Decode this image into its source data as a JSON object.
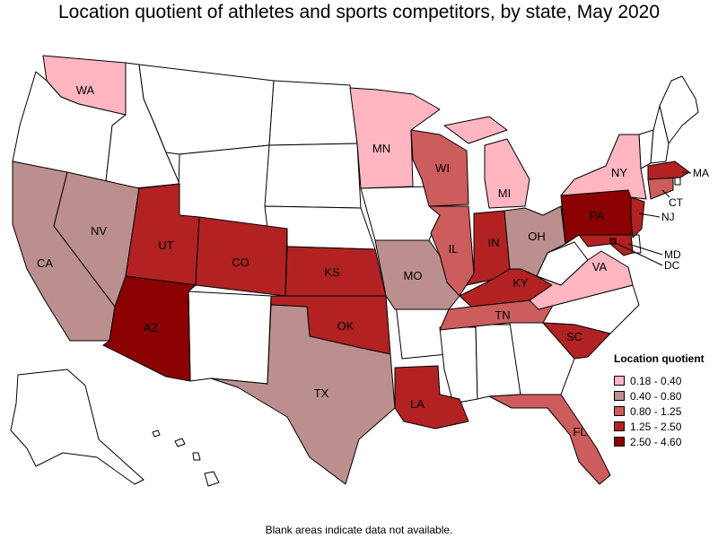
{
  "title": "Location quotient of athletes and sports competitors, by state, May 2020",
  "footnote": "Blank areas indicate data not available.",
  "legend": {
    "title": "Location quotient",
    "items": [
      {
        "label": "0.18 - 0.40",
        "color": "#ffb6c1"
      },
      {
        "label": "0.40 - 0.80",
        "color": "#bc8f8f"
      },
      {
        "label": "0.80 - 1.25",
        "color": "#cd5c5c"
      },
      {
        "label": "1.25 - 2.50",
        "color": "#b22222"
      },
      {
        "label": "2.50 - 4.60",
        "color": "#8b0000"
      }
    ]
  },
  "chart_data": {
    "type": "choropleth",
    "title": "Location quotient of athletes and sports competitors, by state, May 2020",
    "legend_position": "bottom-right",
    "categories": [
      "0.18 - 0.40",
      "0.40 - 0.80",
      "0.80 - 1.25",
      "1.25 - 2.50",
      "2.50 - 4.60"
    ],
    "states": [
      {
        "abbr": "WA",
        "bin": 0
      },
      {
        "abbr": "MN",
        "bin": 0
      },
      {
        "abbr": "MI",
        "bin": 0
      },
      {
        "abbr": "NY",
        "bin": 0
      },
      {
        "abbr": "VA",
        "bin": 0
      },
      {
        "abbr": "CA",
        "bin": 1
      },
      {
        "abbr": "NV",
        "bin": 1
      },
      {
        "abbr": "TX",
        "bin": 1
      },
      {
        "abbr": "MO",
        "bin": 1
      },
      {
        "abbr": "OH",
        "bin": 1
      },
      {
        "abbr": "WI",
        "bin": 2
      },
      {
        "abbr": "IL",
        "bin": 2
      },
      {
        "abbr": "TN",
        "bin": 2
      },
      {
        "abbr": "FL",
        "bin": 2
      },
      {
        "abbr": "CT",
        "bin": 2
      },
      {
        "abbr": "UT",
        "bin": 3
      },
      {
        "abbr": "CO",
        "bin": 3
      },
      {
        "abbr": "KS",
        "bin": 3
      },
      {
        "abbr": "OK",
        "bin": 3
      },
      {
        "abbr": "LA",
        "bin": 3
      },
      {
        "abbr": "IN",
        "bin": 3
      },
      {
        "abbr": "KY",
        "bin": 3
      },
      {
        "abbr": "SC",
        "bin": 3
      },
      {
        "abbr": "NJ",
        "bin": 3
      },
      {
        "abbr": "MA",
        "bin": 3
      },
      {
        "abbr": "MD",
        "bin": 3
      },
      {
        "abbr": "AZ",
        "bin": 4
      },
      {
        "abbr": "PA",
        "bin": 4
      },
      {
        "abbr": "DC",
        "bin": 4
      }
    ]
  }
}
